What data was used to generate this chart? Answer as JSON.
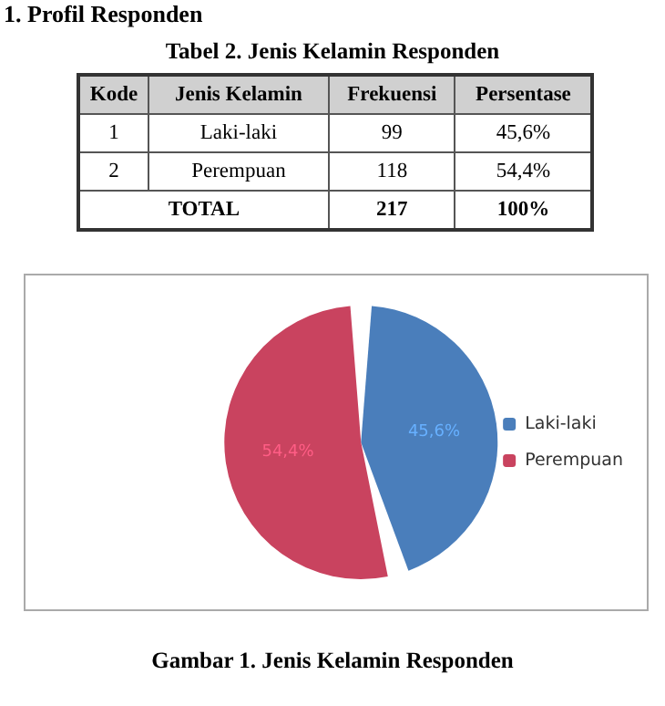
{
  "chart_data": [
    {
      "type": "other",
      "title": "1. Profil Responden",
      "subtitle": "Tabel 2. Jenis Kelamin Responden",
      "annotations": [
        "Kode",
        "Jenis Kelamin",
        "Frekuensi",
        "Persentase",
        "1",
        "Laki-laki",
        "99",
        "45,6%",
        "2",
        "Perempuan",
        "118",
        "54,4%",
        "TOTAL",
        "217",
        "100%"
      ]
    },
    {
      "type": "pie",
      "title": "Gambar 1.  Jenis Kelamin Responden",
      "categories": [
        "Laki-laki",
        "Perempuan"
      ],
      "values": [
        45.6,
        54.4
      ],
      "colors": [
        "#4a7ebb",
        "#c9435f"
      ],
      "value_labels": [
        "45,6%",
        "54,4%"
      ],
      "legend": "right"
    }
  ]
}
